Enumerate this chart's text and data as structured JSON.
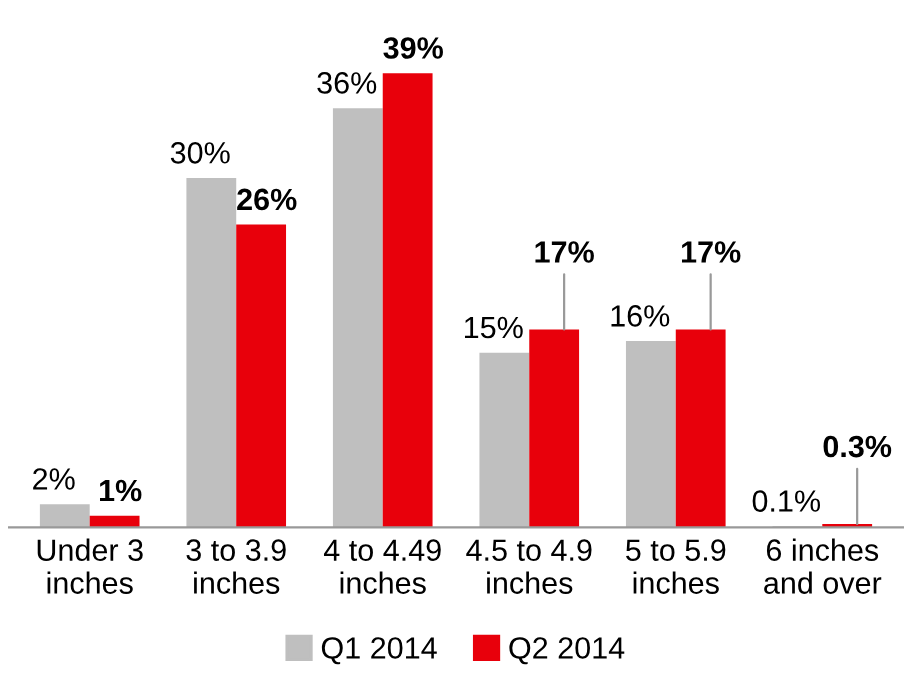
{
  "chart_data": {
    "type": "bar",
    "categories": [
      "Under 3\ninches",
      "3 to 3.9\ninches",
      "4 to 4.49\ninches",
      "4.5 to 4.9\ninches",
      "5 to 5.9\ninches",
      "6 inches\nand over"
    ],
    "series": [
      {
        "name": "Q1 2014",
        "color": "#bfbfbf",
        "values": [
          2,
          30,
          36,
          15,
          16,
          0.1
        ],
        "value_labels": [
          "2%",
          "30%",
          "36%",
          "15%",
          "16%",
          "0.1%"
        ]
      },
      {
        "name": "Q2 2014",
        "color": "#e8000b",
        "values": [
          1,
          26,
          39,
          17,
          17,
          0.3
        ],
        "value_labels": [
          "1%",
          "26%",
          "39%",
          "17%",
          "17%",
          "0.3%"
        ]
      }
    ],
    "legend": "bottom",
    "grid": false
  }
}
